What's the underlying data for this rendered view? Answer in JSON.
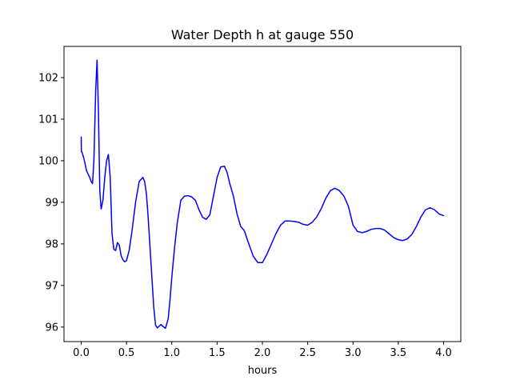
{
  "chart_data": {
    "type": "line",
    "title": "Water Depth h at gauge 550",
    "xlabel": "hours",
    "ylabel": "",
    "xlim": [
      -0.19,
      4.19
    ],
    "ylim": [
      95.65,
      102.75
    ],
    "xticks": [
      0.0,
      0.5,
      1.0,
      1.5,
      2.0,
      2.5,
      3.0,
      3.5,
      4.0
    ],
    "xtick_labels": [
      "0.0",
      "0.5",
      "1.0",
      "1.5",
      "2.0",
      "2.5",
      "3.0",
      "3.5",
      "4.0"
    ],
    "yticks": [
      96,
      97,
      98,
      99,
      100,
      101,
      102
    ],
    "ytick_labels": [
      "96",
      "97",
      "98",
      "99",
      "100",
      "101",
      "102"
    ],
    "grid": false,
    "series": [
      {
        "color": "#0000ff",
        "x": [
          0.0,
          0.002,
          0.01,
          0.03,
          0.06,
          0.09,
          0.11,
          0.125,
          0.14,
          0.16,
          0.175,
          0.19,
          0.205,
          0.22,
          0.24,
          0.26,
          0.28,
          0.3,
          0.32,
          0.34,
          0.36,
          0.38,
          0.4,
          0.42,
          0.44,
          0.46,
          0.48,
          0.5,
          0.53,
          0.56,
          0.6,
          0.64,
          0.68,
          0.7,
          0.72,
          0.74,
          0.76,
          0.78,
          0.8,
          0.82,
          0.84,
          0.86,
          0.88,
          0.9,
          0.93,
          0.96,
          0.98,
          1.0,
          1.03,
          1.06,
          1.1,
          1.14,
          1.18,
          1.22,
          1.26,
          1.3,
          1.34,
          1.38,
          1.42,
          1.46,
          1.5,
          1.54,
          1.58,
          1.61,
          1.64,
          1.68,
          1.72,
          1.76,
          1.8,
          1.85,
          1.9,
          1.95,
          2.0,
          2.05,
          2.1,
          2.15,
          2.2,
          2.25,
          2.3,
          2.35,
          2.4,
          2.45,
          2.5,
          2.55,
          2.6,
          2.65,
          2.7,
          2.75,
          2.8,
          2.85,
          2.9,
          2.95,
          3.0,
          3.05,
          3.1,
          3.15,
          3.2,
          3.25,
          3.3,
          3.35,
          3.4,
          3.45,
          3.5,
          3.55,
          3.6,
          3.65,
          3.7,
          3.75,
          3.8,
          3.85,
          3.9,
          3.95,
          4.0
        ],
        "y": [
          100.57,
          100.22,
          100.2,
          100.05,
          99.75,
          99.62,
          99.5,
          99.45,
          100.0,
          101.7,
          102.42,
          101.2,
          99.3,
          98.84,
          99.05,
          99.6,
          100.0,
          100.15,
          99.6,
          98.25,
          97.87,
          97.84,
          98.03,
          97.97,
          97.72,
          97.62,
          97.57,
          97.6,
          97.85,
          98.3,
          99.0,
          99.5,
          99.6,
          99.5,
          99.2,
          98.6,
          97.9,
          97.2,
          96.5,
          96.05,
          95.98,
          96.02,
          96.06,
          96.02,
          95.97,
          96.2,
          96.65,
          97.2,
          97.9,
          98.5,
          99.05,
          99.15,
          99.16,
          99.13,
          99.05,
          98.82,
          98.64,
          98.59,
          98.7,
          99.15,
          99.6,
          99.85,
          99.87,
          99.72,
          99.45,
          99.15,
          98.72,
          98.42,
          98.32,
          98.0,
          97.7,
          97.55,
          97.55,
          97.75,
          98.0,
          98.25,
          98.45,
          98.55,
          98.55,
          98.54,
          98.52,
          98.47,
          98.45,
          98.52,
          98.65,
          98.85,
          99.1,
          99.28,
          99.34,
          99.28,
          99.15,
          98.9,
          98.45,
          98.3,
          98.27,
          98.3,
          98.35,
          98.37,
          98.37,
          98.33,
          98.24,
          98.15,
          98.1,
          98.08,
          98.12,
          98.23,
          98.42,
          98.65,
          98.82,
          98.87,
          98.82,
          98.72,
          98.68
        ]
      }
    ]
  }
}
